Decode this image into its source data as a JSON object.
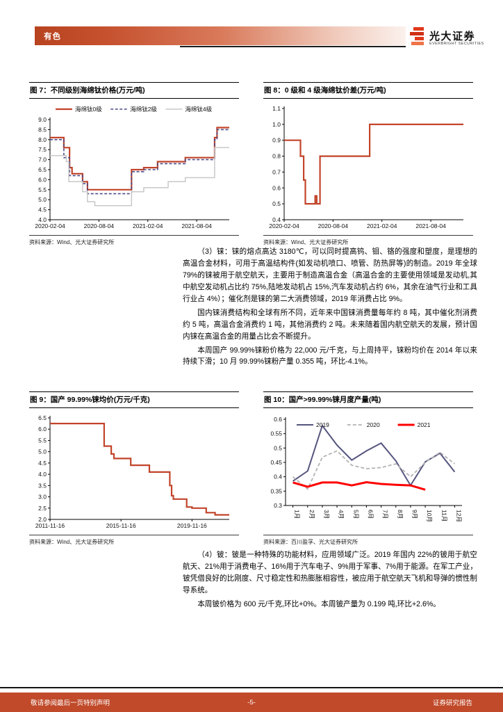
{
  "header": {
    "section_label": "有色",
    "brand": {
      "name": "光大证券",
      "subtitle": "EVERBRIGHT SECURITIES"
    }
  },
  "figures": [
    {
      "title": "图 7：不同级别海绵钛价格(万元/吨)",
      "source": "资料来源：Wind、光大证券研究所",
      "chart_data": {
        "type": "line",
        "title": "不同级别海绵钛价格(万元/吨)",
        "xlim": [
          0,
          22
        ],
        "ylim": [
          4.0,
          9.0
        ],
        "legend": "top",
        "grid": false,
        "yticks": [
          {
            "v": 4.0,
            "l": "4.0"
          },
          {
            "v": 4.5,
            "l": "4.5"
          },
          {
            "v": 5.0,
            "l": "5.0"
          },
          {
            "v": 5.5,
            "l": "5.5"
          },
          {
            "v": 6.0,
            "l": "6.0"
          },
          {
            "v": 6.5,
            "l": "6.5"
          },
          {
            "v": 7.0,
            "l": "7.0"
          },
          {
            "v": 7.5,
            "l": "7.5"
          },
          {
            "v": 8.0,
            "l": "8.0"
          },
          {
            "v": 8.5,
            "l": "8.5"
          },
          {
            "v": 9.0,
            "l": "9.0"
          }
        ],
        "xticks": [
          {
            "v": 0,
            "l": "2020-02-04"
          },
          {
            "v": 6,
            "l": "2020-08-04"
          },
          {
            "v": 12,
            "l": "2021-02-04"
          },
          {
            "v": 18,
            "l": "2021-08-04"
          }
        ],
        "series": [
          {
            "name": "海绵钛0级",
            "color": "#c2442a",
            "width": 2.2,
            "dash": "",
            "points": [
              [
                0,
                8.1
              ],
              [
                1.7,
                8.1
              ],
              [
                1.7,
                7.6
              ],
              [
                2.4,
                7.6
              ],
              [
                2.4,
                6.6
              ],
              [
                2.7,
                6.6
              ],
              [
                2.7,
                6.3
              ],
              [
                4.0,
                6.3
              ],
              [
                4.0,
                5.9
              ],
              [
                4.6,
                5.9
              ],
              [
                4.6,
                5.5
              ],
              [
                10,
                5.5
              ],
              [
                10,
                6.5
              ],
              [
                11.5,
                6.5
              ],
              [
                11.5,
                6.6
              ],
              [
                13.2,
                6.6
              ],
              [
                13.2,
                6.9
              ],
              [
                16.6,
                6.9
              ],
              [
                16.6,
                7.1
              ],
              [
                20.2,
                7.1
              ],
              [
                20.2,
                8.1
              ],
              [
                20.5,
                8.1
              ],
              [
                20.5,
                8.6
              ],
              [
                22,
                8.6
              ]
            ]
          },
          {
            "name": "海绵钛2级",
            "color": "#4a4a88",
            "width": 1.6,
            "dash": "4 2.5",
            "points": [
              [
                0,
                8.0
              ],
              [
                1.7,
                8.0
              ],
              [
                1.7,
                7.1
              ],
              [
                2.4,
                7.1
              ],
              [
                2.4,
                6.2
              ],
              [
                4.0,
                6.2
              ],
              [
                4.0,
                5.8
              ],
              [
                4.6,
                5.8
              ],
              [
                4.6,
                5.3
              ],
              [
                10,
                5.3
              ],
              [
                10,
                6.4
              ],
              [
                11.5,
                6.4
              ],
              [
                11.5,
                6.5
              ],
              [
                13.2,
                6.5
              ],
              [
                13.2,
                6.8
              ],
              [
                16.6,
                6.8
              ],
              [
                16.6,
                7.0
              ],
              [
                20.2,
                7.0
              ],
              [
                20.2,
                8.0
              ],
              [
                20.5,
                8.0
              ],
              [
                20.5,
                8.5
              ],
              [
                22,
                8.5
              ]
            ]
          },
          {
            "name": "海绵钛4级",
            "color": "#c8c8c8",
            "width": 1.5,
            "dash": "",
            "points": [
              [
                0,
                7.2
              ],
              [
                2.0,
                7.2
              ],
              [
                2.0,
                6.9
              ],
              [
                2.3,
                6.9
              ],
              [
                2.3,
                5.9
              ],
              [
                4.0,
                5.9
              ],
              [
                4.0,
                5.4
              ],
              [
                4.6,
                5.4
              ],
              [
                4.6,
                4.9
              ],
              [
                5.5,
                4.9
              ],
              [
                5.5,
                4.7
              ],
              [
                10,
                4.7
              ],
              [
                10,
                5.4
              ],
              [
                11.5,
                5.4
              ],
              [
                11.5,
                5.6
              ],
              [
                14.5,
                5.6
              ],
              [
                14.5,
                5.9
              ],
              [
                16.6,
                5.9
              ],
              [
                16.6,
                6.1
              ],
              [
                20.2,
                6.1
              ],
              [
                20.2,
                7.6
              ],
              [
                22,
                7.6
              ]
            ]
          }
        ]
      }
    },
    {
      "title": "图 8：0 级和 4 级海绵钛价差(万元/吨)",
      "source": "资料来源：Wind、光大证券研究所",
      "chart_data": {
        "type": "line",
        "title": "0级和4级海绵钛价差(万元/吨)",
        "xlim": [
          0,
          22
        ],
        "ylim": [
          0.4,
          1.1
        ],
        "legend": null,
        "grid": false,
        "yticks": [
          {
            "v": 0.4,
            "l": "0.4"
          },
          {
            "v": 0.5,
            "l": "0.5"
          },
          {
            "v": 0.6,
            "l": "0.6"
          },
          {
            "v": 0.7,
            "l": "0.7"
          },
          {
            "v": 0.8,
            "l": "0.8"
          },
          {
            "v": 0.9,
            "l": "0.9"
          },
          {
            "v": 1.0,
            "l": "1.0"
          },
          {
            "v": 1.1,
            "l": "1.1"
          }
        ],
        "xticks": [
          {
            "v": 0,
            "l": "2020-02-04"
          },
          {
            "v": 6,
            "l": "2020-08-04"
          },
          {
            "v": 12,
            "l": "2021-02-04"
          },
          {
            "v": 18,
            "l": "2021-08-04"
          }
        ],
        "series": [
          {
            "name": "价差",
            "color": "#c2442a",
            "width": 2.2,
            "dash": "",
            "points": [
              [
                0,
                0.9
              ],
              [
                2.0,
                0.9
              ],
              [
                2.0,
                0.8
              ],
              [
                2.4,
                0.8
              ],
              [
                2.4,
                0.65
              ],
              [
                2.6,
                0.65
              ],
              [
                2.6,
                0.5
              ],
              [
                3.8,
                0.5
              ],
              [
                3.8,
                0.55
              ],
              [
                4.0,
                0.55
              ],
              [
                4.0,
                0.5
              ],
              [
                4.4,
                0.5
              ],
              [
                4.4,
                0.8
              ],
              [
                10.5,
                0.8
              ],
              [
                10.5,
                1.0
              ],
              [
                22,
                1.0
              ]
            ]
          }
        ]
      }
    },
    {
      "title": "图 9：国产 99.99%铼均价(万元/千克)",
      "source": "资料来源：Wind、光大证券研究所",
      "chart_data": {
        "type": "line",
        "title": "国产99.99%铼均价(万元/千克)",
        "xlim": [
          0,
          10.1
        ],
        "ylim": [
          2.0,
          6.5
        ],
        "legend": null,
        "grid": false,
        "yticks": [
          {
            "v": 2.0,
            "l": "2.0"
          },
          {
            "v": 2.5,
            "l": "2.5"
          },
          {
            "v": 3.0,
            "l": "3.0"
          },
          {
            "v": 3.5,
            "l": "3.5"
          },
          {
            "v": 4.0,
            "l": "4.0"
          },
          {
            "v": 4.5,
            "l": "4.5"
          },
          {
            "v": 5.0,
            "l": "5.0"
          },
          {
            "v": 5.5,
            "l": "5.5"
          },
          {
            "v": 6.0,
            "l": "6.0"
          },
          {
            "v": 6.5,
            "l": "6.5"
          }
        ],
        "xticks": [
          {
            "v": 0,
            "l": "2011-11-16"
          },
          {
            "v": 4,
            "l": "2015-11-16"
          },
          {
            "v": 8,
            "l": "2019-11-16"
          }
        ],
        "series": [
          {
            "name": "铼均价",
            "color": "#c2442a",
            "width": 2.2,
            "dash": "",
            "points": [
              [
                0,
                6.25
              ],
              [
                3.05,
                6.25
              ],
              [
                3.05,
                5.25
              ],
              [
                3.45,
                5.25
              ],
              [
                3.45,
                4.9
              ],
              [
                3.6,
                4.9
              ],
              [
                3.6,
                4.7
              ],
              [
                4.55,
                4.7
              ],
              [
                4.55,
                4.4
              ],
              [
                5.6,
                4.4
              ],
              [
                5.6,
                4.1
              ],
              [
                6.75,
                4.1
              ],
              [
                6.75,
                3.5
              ],
              [
                6.85,
                3.5
              ],
              [
                6.85,
                3.05
              ],
              [
                6.95,
                3.05
              ],
              [
                6.95,
                2.9
              ],
              [
                7.7,
                2.9
              ],
              [
                7.7,
                2.55
              ],
              [
                8.0,
                2.55
              ],
              [
                8.0,
                2.5
              ],
              [
                8.8,
                2.5
              ],
              [
                8.8,
                2.3
              ],
              [
                9.3,
                2.3
              ],
              [
                9.3,
                2.2
              ],
              [
                10.1,
                2.2
              ]
            ]
          }
        ]
      }
    },
    {
      "title": "图 10：国产>99.99%铼月度产量(吨)",
      "source": "资料来源：百川盈孚、光大证券研究所",
      "chart_data": {
        "type": "line",
        "title": "国产>99.99%铼月度产量(吨)",
        "xlim": [
          0.5,
          12.5
        ],
        "ylim": [
          0.3,
          0.6
        ],
        "legend": "overlay",
        "grid": false,
        "rotate_xlabels": true,
        "yticks": [
          {
            "v": 0.3,
            "l": "0.3"
          },
          {
            "v": 0.35,
            "l": "0.35"
          },
          {
            "v": 0.4,
            "l": "0.4"
          },
          {
            "v": 0.45,
            "l": "0.45"
          },
          {
            "v": 0.5,
            "l": "0.5"
          },
          {
            "v": 0.55,
            "l": "0.55"
          },
          {
            "v": 0.6,
            "l": "0.6"
          }
        ],
        "xticks": [
          {
            "v": 1,
            "l": "1月"
          },
          {
            "v": 2,
            "l": "2月"
          },
          {
            "v": 3,
            "l": "3月"
          },
          {
            "v": 4,
            "l": "4月"
          },
          {
            "v": 5,
            "l": "5月"
          },
          {
            "v": 6,
            "l": "6月"
          },
          {
            "v": 7,
            "l": "7月"
          },
          {
            "v": 8,
            "l": "8月"
          },
          {
            "v": 9,
            "l": "9月"
          },
          {
            "v": 10,
            "l": "10月"
          },
          {
            "v": 11,
            "l": "11月"
          },
          {
            "v": 12,
            "l": "12月"
          }
        ],
        "series": [
          {
            "name": "2019",
            "color": "#54547e",
            "width": 2,
            "dash": "",
            "points": [
              [
                1,
                0.385
              ],
              [
                2,
                0.42
              ],
              [
                3,
                0.578
              ],
              [
                4,
                0.51
              ],
              [
                5,
                0.458
              ],
              [
                6,
                0.49
              ],
              [
                7,
                0.517
              ],
              [
                8,
                0.455
              ],
              [
                9,
                0.37
              ],
              [
                10,
                0.452
              ],
              [
                11,
                0.482
              ],
              [
                12,
                0.417
              ]
            ]
          },
          {
            "name": "2020",
            "color": "#b3b3b3",
            "width": 1.8,
            "dash": "5 3",
            "points": [
              [
                1,
                0.4
              ],
              [
                2,
                0.357
              ],
              [
                3,
                0.468
              ],
              [
                4,
                0.49
              ],
              [
                5,
                0.44
              ],
              [
                6,
                0.428
              ],
              [
                7,
                0.432
              ],
              [
                8,
                0.445
              ],
              [
                9,
                0.4
              ],
              [
                10,
                0.45
              ],
              [
                11,
                0.485
              ],
              [
                12,
                0.445
              ]
            ]
          },
          {
            "name": "2021",
            "color": "#ff0000",
            "width": 3,
            "dash": "",
            "points": [
              [
                1,
                0.38
              ],
              [
                2,
                0.365
              ],
              [
                3,
                0.38
              ],
              [
                4,
                0.38
              ],
              [
                5,
                0.37
              ],
              [
                6,
                0.381
              ],
              [
                7,
                0.375
              ],
              [
                8,
                0.372
              ],
              [
                9,
                0.37
              ],
              [
                10,
                0.355
              ]
            ]
          }
        ]
      }
    }
  ],
  "sections": [
    {
      "paragraphs": [
        "（3）铼：铼的熔点高达 3180℃，可以同时提高钨、钼、铬的强度和塑度，是理想的高温合金材料，可用于高温结构件(如发动机喷口、喷管、防热屏等)的制造。2019 年全球 79%的铼被用于航空航天，主要用于制造高温合金（高温合金的主要使用领域是发动机,其中航空发动机占比约 75%,陆地发动机占 15%,汽车发动机占约 6%，其余在油气行业和工具行业占 4%）；催化剂是铼的第二大消费领域，2019 年消费占比 9%。",
        "国内铼消费结构和全球有所不同，近年来中国铼消费量每年约 8 吨，其中催化剂消费约 5 吨，高温合金消费约 1 吨，其他消费约 2 吨。未来随着国内航空航天的发展，预计国内铼在高温合金的用量占比会不断提升。",
        "本周国产 99.99%铼粉价格为 22,000 元/千克，与上周持平，铼粉均价在 2014 年以来持续下滑；10 月 99.99%铼粉产量 0.355 吨，环比-4.1%。"
      ]
    },
    {
      "paragraphs": [
        "（4）铍：铍是一种特殊的功能材料，应用领域广泛。2019 年国内 22%的铍用于航空航天、21%用于消费电子、16%用于汽车电子、9%用于军事、7%用于能源。在军工产业，铍凭借良好的比刚度、尺寸稳定性和热膨胀相容性，被应用于航空航天飞机和导弹的惯性制导系统。",
        "本周铍价格为 600 元/千克,环比+0%。本周铍产量为 0.199 吨,环比+2.6%。"
      ]
    }
  ],
  "footer": {
    "left": "敬请参阅最后一页特别声明",
    "page": "-5-",
    "right": "证券研究报告"
  }
}
